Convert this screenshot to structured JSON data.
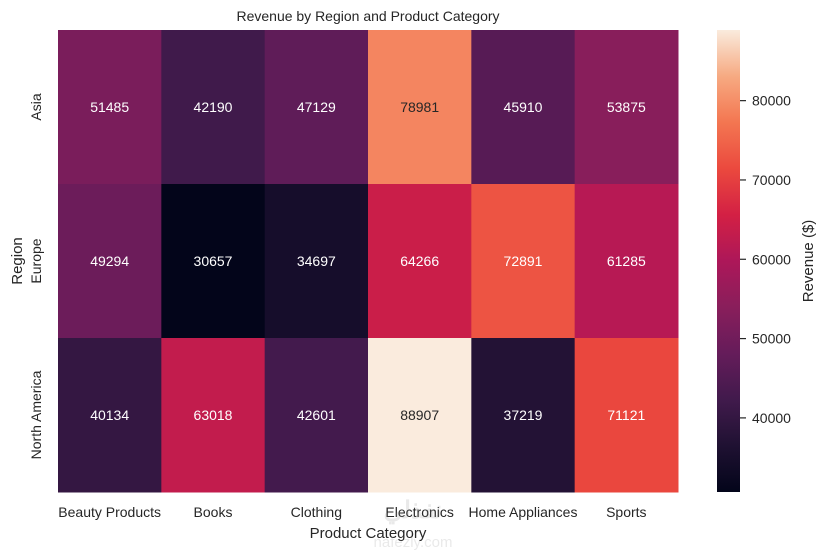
{
  "chart_data": {
    "type": "heatmap",
    "title": "Revenue by Region and Product Category",
    "xlabel": "Product Category",
    "ylabel": "Region",
    "x_categories": [
      "Beauty Products",
      "Books",
      "Clothing",
      "Electronics",
      "Home Appliances",
      "Sports"
    ],
    "y_categories": [
      "Asia",
      "Europe",
      "North America"
    ],
    "values": [
      [
        51485,
        42190,
        47129,
        78981,
        45910,
        53875
      ],
      [
        49294,
        30657,
        34697,
        64266,
        72891,
        61285
      ],
      [
        40134,
        63018,
        42601,
        88907,
        37219,
        71121
      ]
    ],
    "colormap": "rocket",
    "annotations": true,
    "colorbar": {
      "label": "Revenue ($)",
      "range": [
        30657,
        88907
      ],
      "ticks": [
        40000,
        50000,
        60000,
        70000,
        80000
      ],
      "tick_labels": [
        "40000",
        "50000",
        "60000",
        "70000",
        "80000"
      ]
    },
    "grid": false
  },
  "watermark": {
    "text_top": "نفذلي",
    "text_bottom": "nafezly.com"
  }
}
